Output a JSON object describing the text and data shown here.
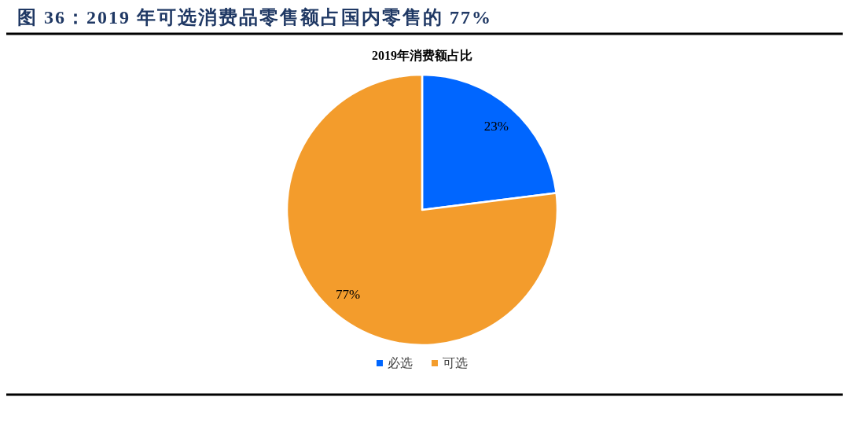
{
  "chart_data": {
    "type": "pie",
    "title": "图 36：2019 年可选消费品零售额占国内零售的 77%",
    "subtitle": "2019年消费额占比",
    "categories": [
      "必选",
      "可选"
    ],
    "values": [
      23,
      77
    ],
    "colors": [
      "#0066ff",
      "#f39c2c"
    ],
    "value_labels": [
      "23%",
      "77%"
    ],
    "legend": "bottom"
  }
}
